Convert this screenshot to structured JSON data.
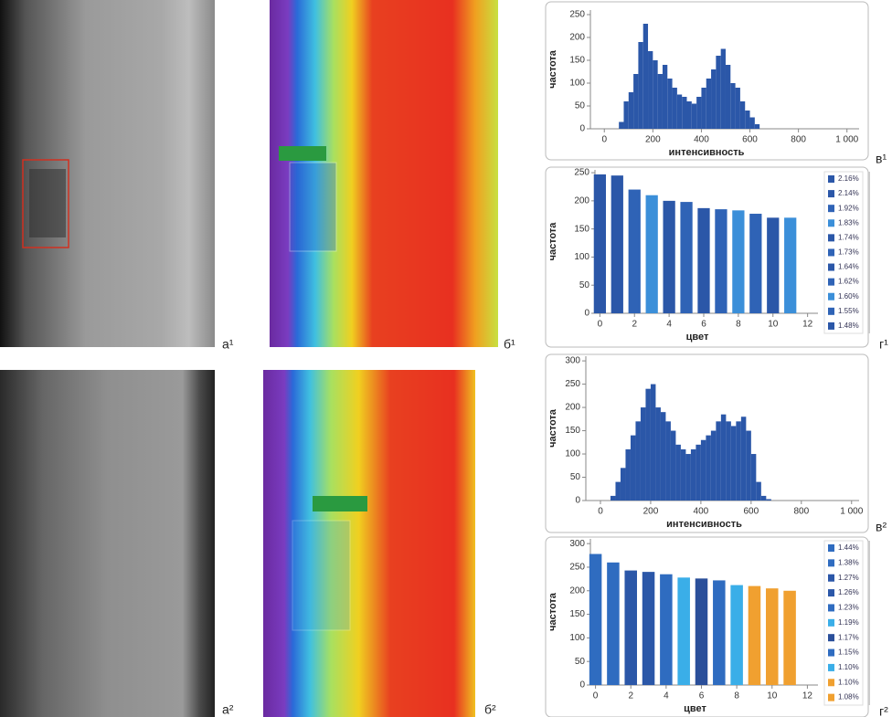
{
  "panels": [
    "а¹",
    "б¹",
    "в¹",
    "г¹",
    "а²",
    "б²",
    "в²",
    "г²"
  ],
  "chart_data": [
    {
      "type": "histogram",
      "xlabel": "интенсивность",
      "ylabel": "частота",
      "color": "#2b57a8",
      "bins": [
        60,
        80,
        100,
        120,
        140,
        160,
        180,
        200,
        220,
        240,
        260,
        280,
        300,
        320,
        340,
        360,
        380,
        400,
        420,
        440,
        460,
        480,
        500,
        520,
        540,
        560,
        580,
        600,
        620,
        640
      ],
      "values": [
        15,
        60,
        80,
        120,
        190,
        230,
        170,
        150,
        120,
        140,
        110,
        90,
        75,
        70,
        60,
        55,
        70,
        90,
        110,
        130,
        160,
        175,
        140,
        100,
        90,
        60,
        40,
        25,
        10
      ],
      "xlim": [
        -80,
        1050
      ],
      "xticks": [
        0,
        200,
        400,
        600,
        800,
        {
          "value": 1000,
          "label": "1 000"
        }
      ],
      "ylim": [
        0,
        260
      ],
      "yticks": [
        0,
        50,
        100,
        150,
        200,
        250
      ]
    },
    {
      "type": "bar",
      "xlabel": "цвет",
      "ylabel": "частота",
      "categories": [
        0,
        1,
        2,
        3,
        4,
        5,
        6,
        7,
        8,
        9,
        10,
        11
      ],
      "values": [
        247,
        245,
        220,
        210,
        200,
        198,
        187,
        185,
        183,
        177,
        170,
        170
      ],
      "colors": [
        "#2b57a8",
        "#2b57a8",
        "#2f63b6",
        "#3b8fd9",
        "#2b57a8",
        "#2f63b6",
        "#2b57a8",
        "#2f63b6",
        "#3b8fd9",
        "#2f63b6",
        "#2b57a8",
        "#3b8fd9"
      ],
      "legend": [
        "2.16%",
        "2.14%",
        "1.92%",
        "1.83%",
        "1.74%",
        "1.73%",
        "1.64%",
        "1.62%",
        "1.60%",
        "1.55%",
        "1.48%"
      ],
      "legend_colors": [
        "#2b57a8",
        "#2b57a8",
        "#2f63b6",
        "#3b8fd9",
        "#2b57a8",
        "#2f63b6",
        "#2b57a8",
        "#2f63b6",
        "#3b8fd9",
        "#2f63b6",
        "#2b57a8"
      ],
      "xlim": [
        -0.6,
        12.6
      ],
      "xticks": [
        0,
        2,
        4,
        6,
        8,
        10,
        12
      ],
      "ylim": [
        0,
        255
      ],
      "yticks": [
        0,
        50,
        100,
        150,
        200,
        250
      ]
    },
    {
      "type": "histogram",
      "xlabel": "интенсивность",
      "ylabel": "частота",
      "color": "#2b57a8",
      "bins": [
        40,
        60,
        80,
        100,
        120,
        140,
        160,
        180,
        200,
        220,
        240,
        260,
        280,
        300,
        320,
        340,
        360,
        380,
        400,
        420,
        440,
        460,
        480,
        500,
        520,
        540,
        560,
        580,
        600,
        620,
        640,
        660,
        680
      ],
      "values": [
        10,
        40,
        70,
        110,
        140,
        170,
        200,
        240,
        250,
        200,
        190,
        170,
        150,
        120,
        110,
        100,
        110,
        120,
        130,
        140,
        150,
        170,
        185,
        170,
        160,
        170,
        180,
        150,
        100,
        40,
        10,
        3
      ],
      "xlim": [
        -80,
        1030
      ],
      "xticks": [
        0,
        200,
        400,
        600,
        800,
        {
          "value": 1000,
          "label": "1 000"
        }
      ],
      "ylim": [
        0,
        310
      ],
      "yticks": [
        0,
        50,
        100,
        150,
        200,
        250,
        300
      ]
    },
    {
      "type": "bar",
      "xlabel": "цвет",
      "ylabel": "частота",
      "categories": [
        0,
        1,
        2,
        3,
        4,
        5,
        6,
        7,
        8,
        9,
        10,
        11
      ],
      "values": [
        278,
        260,
        243,
        240,
        235,
        228,
        226,
        222,
        212,
        210,
        205,
        200
      ],
      "colors": [
        "#2f6cc0",
        "#2f6cc0",
        "#2b57a8",
        "#2b57a8",
        "#2f6cc0",
        "#3aaee8",
        "#2a4f9a",
        "#2f6cc0",
        "#3aaee8",
        "#f0a030",
        "#f0a030",
        "#f0a030"
      ],
      "legend": [
        "1.44%",
        "1.38%",
        "1.27%",
        "1.26%",
        "1.23%",
        "1.19%",
        "1.17%",
        "1.15%",
        "1.10%",
        "1.10%",
        "1.08%"
      ],
      "legend_colors": [
        "#2f6cc0",
        "#2f6cc0",
        "#2b57a8",
        "#2b57a8",
        "#2f6cc0",
        "#3aaee8",
        "#2a4f9a",
        "#2f6cc0",
        "#3aaee8",
        "#f0a030",
        "#f0a030"
      ],
      "xlim": [
        -0.6,
        12.6
      ],
      "xticks": [
        0,
        2,
        4,
        6,
        8,
        10,
        12
      ],
      "ylim": [
        0,
        310
      ],
      "yticks": [
        0,
        50,
        100,
        150,
        200,
        250,
        300
      ]
    }
  ]
}
